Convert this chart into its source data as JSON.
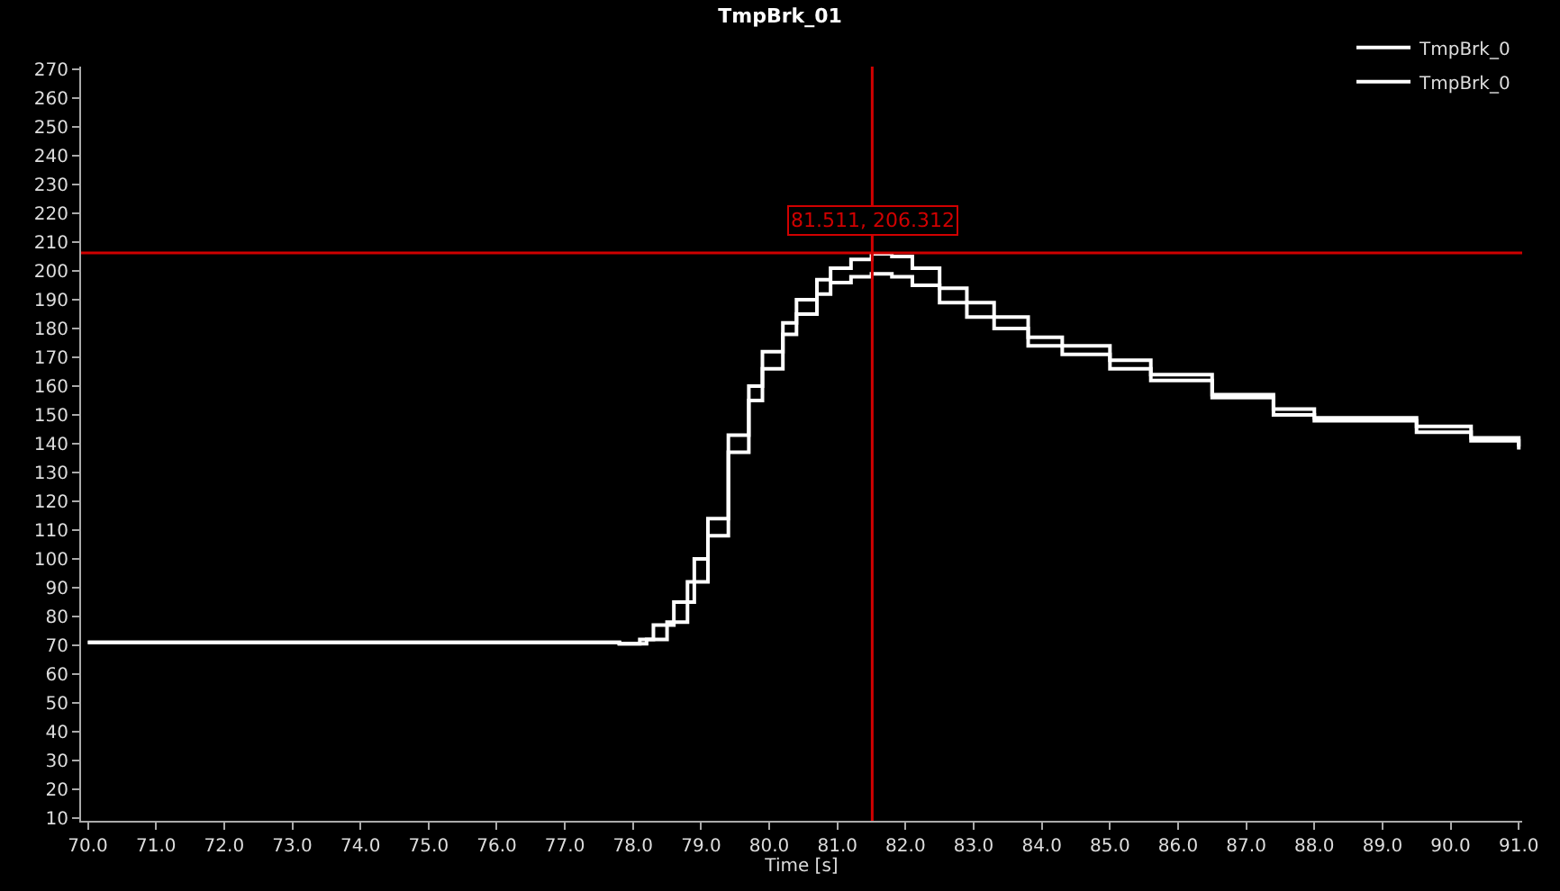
{
  "chart_data": {
    "type": "step",
    "title": "TmpBrk_01",
    "xlabel": "Time [s]",
    "xlim": [
      69.9,
      91.05
    ],
    "ylim": [
      9,
      271
    ],
    "xticks": [
      {
        "value": 70,
        "label": "70.0"
      },
      {
        "value": 71,
        "label": "71.0"
      },
      {
        "value": 72,
        "label": "72.0"
      },
      {
        "value": 73,
        "label": "73.0"
      },
      {
        "value": 74,
        "label": "74.0"
      },
      {
        "value": 75,
        "label": "75.0"
      },
      {
        "value": 76,
        "label": "76.0"
      },
      {
        "value": 77,
        "label": "77.0"
      },
      {
        "value": 78,
        "label": "78.0"
      },
      {
        "value": 79,
        "label": "79.0"
      },
      {
        "value": 80,
        "label": "80.0"
      },
      {
        "value": 81,
        "label": "81.0"
      },
      {
        "value": 82,
        "label": "82.0"
      },
      {
        "value": 83,
        "label": "83.0"
      },
      {
        "value": 84,
        "label": "84.0"
      },
      {
        "value": 85,
        "label": "85.0"
      },
      {
        "value": 86,
        "label": "86.0"
      },
      {
        "value": 87,
        "label": "87.0"
      },
      {
        "value": 88,
        "label": "88.0"
      },
      {
        "value": 89,
        "label": "89.0"
      },
      {
        "value": 90,
        "label": "90.0"
      },
      {
        "value": 91,
        "label": "91.0"
      }
    ],
    "yticks": [
      10,
      20,
      30,
      40,
      50,
      60,
      70,
      80,
      90,
      100,
      110,
      120,
      130,
      140,
      150,
      160,
      170,
      180,
      190,
      200,
      210,
      220,
      230,
      240,
      250,
      260,
      270
    ],
    "legend": "top right",
    "grid": false,
    "marker": "none",
    "line_style": "solid",
    "series": [
      {
        "name": "TmpBrk_0",
        "color": "#ffffff",
        "x": [
          70.0,
          70.5,
          71.0,
          72.0,
          73.0,
          74.0,
          75.0,
          76.0,
          77.0,
          77.8,
          78.1,
          78.3,
          78.6,
          78.9,
          79.1,
          79.4,
          79.7,
          79.9,
          80.2,
          80.4,
          80.7,
          80.9,
          81.2,
          81.5,
          81.8,
          82.1,
          82.5,
          82.9,
          83.3,
          83.8,
          84.3,
          85.0,
          85.6,
          86.5,
          87.4,
          88.0,
          89.5,
          90.3,
          91.0
        ],
        "values": [
          71,
          71,
          71,
          71,
          71,
          71,
          71,
          71,
          71,
          70.5,
          72,
          77,
          85,
          100,
          114,
          143,
          160,
          172,
          182,
          190,
          197,
          201,
          204,
          206,
          205,
          201,
          194,
          189,
          184,
          177,
          174,
          169,
          164,
          157,
          152,
          149,
          146,
          142,
          139
        ]
      },
      {
        "name": "TmpBrk_0",
        "color": "#ffffff",
        "x": [
          70.0,
          71.0,
          72.0,
          73.0,
          74.0,
          75.0,
          76.0,
          77.0,
          77.8,
          78.2,
          78.5,
          78.8,
          79.1,
          79.4,
          79.7,
          79.9,
          80.2,
          80.4,
          80.7,
          80.9,
          81.2,
          81.5,
          81.8,
          82.1,
          82.5,
          82.9,
          83.3,
          83.8,
          84.3,
          85.0,
          85.6,
          86.5,
          87.4,
          88.0,
          89.5,
          90.3,
          91.0
        ],
        "values": [
          71,
          71,
          71,
          71,
          71,
          71,
          71,
          71,
          70.5,
          72,
          78,
          92,
          108,
          137,
          155,
          166,
          178,
          185,
          192,
          196,
          198,
          199,
          198,
          195,
          189,
          184,
          180,
          174,
          171,
          166,
          162,
          156,
          150,
          148,
          144,
          141,
          138
        ]
      }
    ],
    "ref_lines": [
      {
        "axis": "x",
        "value": 81.511,
        "color": "#d00000"
      },
      {
        "axis": "y",
        "value": 206.312,
        "color": "#d00000"
      }
    ],
    "annotations": [
      {
        "text": "81.511, 206.312",
        "x": 81.511,
        "y": 206.312
      }
    ]
  }
}
